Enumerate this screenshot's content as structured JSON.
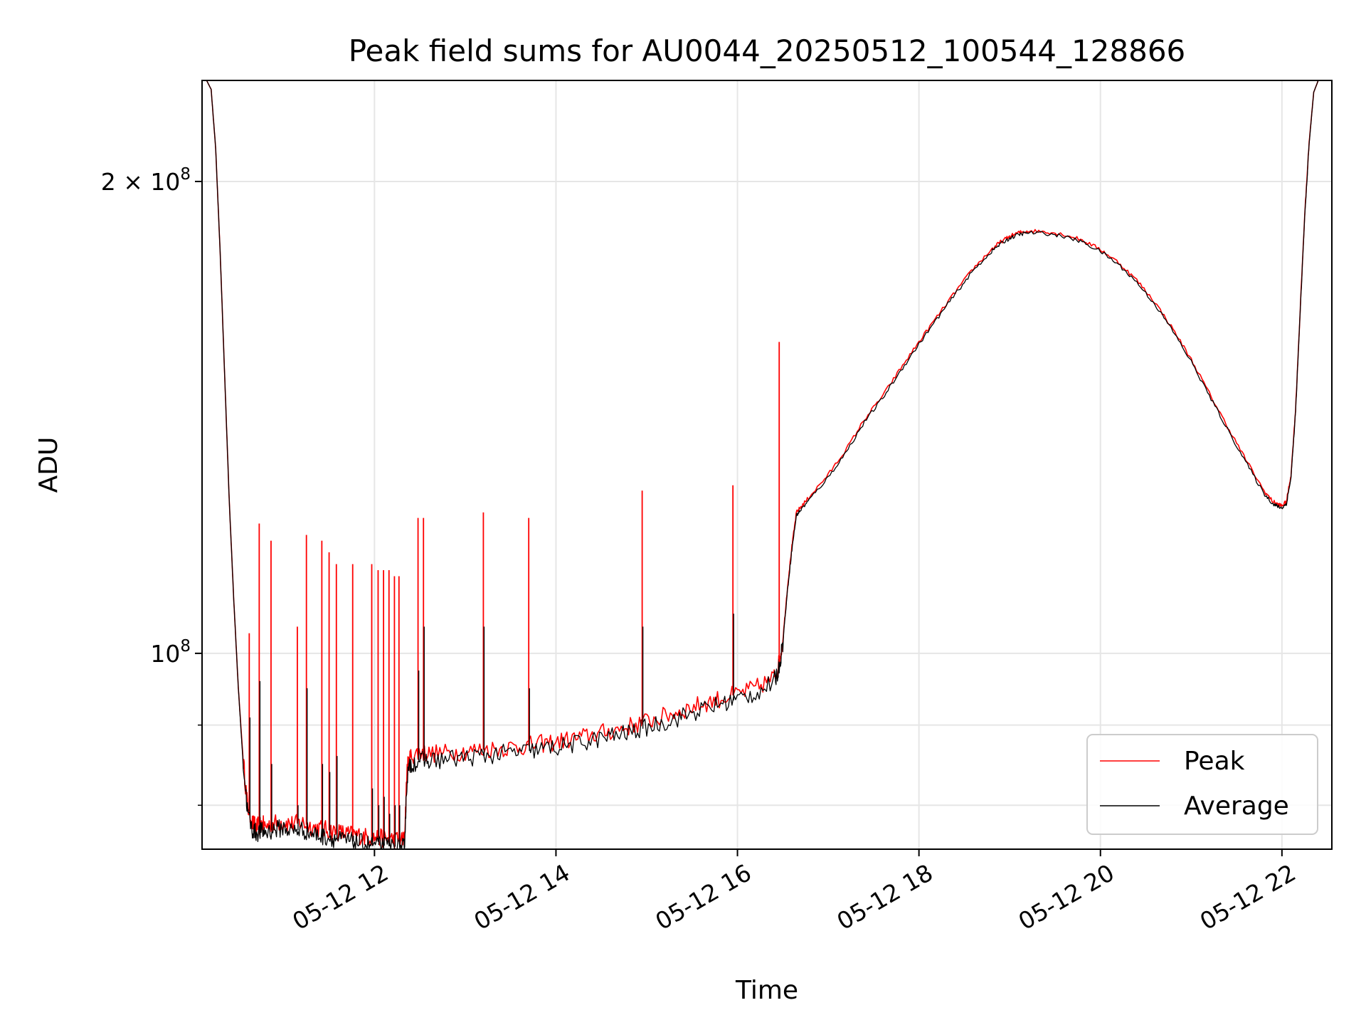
{
  "chart_data": {
    "type": "line",
    "title": "Peak field sums for AU0044_20250512_100544_128866",
    "xlabel": "Time",
    "ylabel": "ADU",
    "x_unit": "hours since 05-12 00:00",
    "xlim": [
      10.1,
      22.55
    ],
    "yscale": "log",
    "ylim": [
      75000000,
      232000000
    ],
    "grid": true,
    "legend_position": "lower-right",
    "x_ticks": [
      {
        "value": 12,
        "label": "05-12 12"
      },
      {
        "value": 14,
        "label": "05-12 14"
      },
      {
        "value": 16,
        "label": "05-12 16"
      },
      {
        "value": 18,
        "label": "05-12 18"
      },
      {
        "value": 20,
        "label": "05-12 20"
      },
      {
        "value": 22,
        "label": "05-12 22"
      }
    ],
    "y_major_ticks": [
      {
        "value": 100000000,
        "base": "10",
        "exp": "8",
        "prefix": ""
      },
      {
        "value": 200000000,
        "base": "10",
        "exp": "8",
        "prefix": "2 × "
      }
    ],
    "y_minor_ticks": [
      80000000,
      90000000
    ],
    "series": [
      {
        "name": "Peak",
        "color": "#ff0000",
        "x": [
          10.1,
          10.15,
          10.2,
          10.25,
          10.3,
          10.35,
          10.4,
          10.45,
          10.5,
          10.55,
          10.6,
          10.65,
          10.7,
          10.75,
          10.8,
          10.9,
          11.0,
          11.1,
          11.2,
          11.3,
          11.4,
          11.5,
          11.6,
          11.7,
          11.8,
          11.9,
          12.0,
          12.1,
          12.2,
          12.3,
          12.33,
          12.36,
          12.4,
          12.5,
          12.6,
          12.8,
          13.0,
          13.2,
          13.4,
          13.6,
          13.8,
          14.0,
          14.2,
          14.4,
          14.6,
          14.8,
          15.0,
          15.2,
          15.4,
          15.6,
          15.8,
          16.0,
          16.2,
          16.4,
          16.45,
          16.5,
          16.55,
          16.6,
          16.65,
          16.7,
          16.8,
          17.0,
          17.2,
          17.4,
          17.6,
          17.8,
          18.0,
          18.2,
          18.4,
          18.6,
          18.8,
          18.9,
          19.0,
          19.1,
          19.2,
          19.4,
          19.6,
          19.8,
          20.0,
          20.2,
          20.4,
          20.6,
          20.8,
          21.0,
          21.2,
          21.4,
          21.6,
          21.8,
          21.9,
          21.95,
          22.0,
          22.05,
          22.1,
          22.15,
          22.2,
          22.25,
          22.3,
          22.35,
          22.4,
          22.45,
          22.5,
          22.55
        ],
        "y": [
          232000000,
          232000000,
          229000000,
          210000000,
          180000000,
          150000000,
          125000000,
          108000000,
          95000000,
          86000000,
          80000000,
          78000000,
          77500000,
          77800000,
          77600000,
          77900000,
          78100000,
          77800000,
          78000000,
          77500000,
          77300000,
          77100000,
          76900000,
          76700000,
          76600000,
          76400000,
          76300000,
          76200000,
          76100000,
          76000000,
          76000000,
          84500000,
          86000000,
          86500000,
          86300000,
          86400000,
          86600000,
          86800000,
          87000000,
          87200000,
          87500000,
          87800000,
          88200000,
          88700000,
          89200000,
          89800000,
          90500000,
          91200000,
          92000000,
          92800000,
          93500000,
          94200000,
          95000000,
          96500000,
          98000000,
          102000000,
          110000000,
          117000000,
          123000000,
          124000000,
          126000000,
          130000000,
          135000000,
          141000000,
          146000000,
          152000000,
          158000000,
          164000000,
          170000000,
          176000000,
          181000000,
          183000000,
          184500000,
          185500000,
          186000000,
          185800000,
          185000000,
          183500000,
          181000000,
          177500000,
          173000000,
          167500000,
          161000000,
          154000000,
          146500000,
          139500000,
          133000000,
          127000000,
          125000000,
          124500000,
          124200000,
          125000000,
          130000000,
          143000000,
          165000000,
          190000000,
          212000000,
          228000000,
          232000000,
          232000000,
          232000000,
          232000000
        ]
      },
      {
        "name": "Average",
        "color": "#000000",
        "x": [
          10.1,
          10.15,
          10.2,
          10.25,
          10.3,
          10.35,
          10.4,
          10.45,
          10.5,
          10.55,
          10.6,
          10.65,
          10.7,
          10.75,
          10.8,
          10.9,
          11.0,
          11.1,
          11.2,
          11.3,
          11.4,
          11.5,
          11.6,
          11.7,
          11.8,
          11.9,
          12.0,
          12.1,
          12.2,
          12.3,
          12.33,
          12.36,
          12.4,
          12.5,
          12.6,
          12.8,
          13.0,
          13.2,
          13.4,
          13.6,
          13.8,
          14.0,
          14.2,
          14.4,
          14.6,
          14.8,
          15.0,
          15.2,
          15.4,
          15.6,
          15.8,
          16.0,
          16.2,
          16.4,
          16.45,
          16.5,
          16.55,
          16.6,
          16.65,
          16.7,
          16.8,
          17.0,
          17.2,
          17.4,
          17.6,
          17.8,
          18.0,
          18.2,
          18.4,
          18.6,
          18.8,
          18.9,
          19.0,
          19.1,
          19.2,
          19.4,
          19.6,
          19.8,
          20.0,
          20.2,
          20.4,
          20.6,
          20.8,
          21.0,
          21.2,
          21.4,
          21.6,
          21.8,
          21.9,
          21.95,
          22.0,
          22.05,
          22.1,
          22.15,
          22.2,
          22.25,
          22.3,
          22.35,
          22.4,
          22.45,
          22.5,
          22.55
        ],
        "y": [
          232000000,
          232000000,
          229000000,
          210000000,
          180000000,
          150000000,
          125000000,
          108000000,
          95000000,
          85500000,
          79500000,
          77200000,
          76800000,
          77000000,
          76900000,
          77200000,
          77400000,
          77000000,
          77200000,
          76800000,
          76500000,
          76300000,
          76100000,
          75900000,
          75800000,
          75600000,
          75500000,
          75400000,
          75300000,
          75200000,
          75200000,
          83500000,
          85000000,
          85500000,
          85400000,
          85600000,
          85800000,
          86000000,
          86300000,
          86500000,
          86800000,
          87100000,
          87500000,
          88000000,
          88500000,
          89000000,
          89700000,
          90400000,
          91200000,
          92000000,
          92800000,
          93500000,
          94300000,
          95800000,
          97500000,
          101500000,
          109500000,
          116500000,
          122500000,
          123500000,
          125500000,
          129500000,
          134500000,
          140500000,
          145500000,
          151500000,
          157500000,
          163500000,
          169500000,
          175500000,
          180500000,
          182500000,
          184000000,
          185000000,
          185500000,
          185300000,
          184500000,
          183000000,
          180500000,
          177000000,
          172500000,
          167000000,
          160500000,
          153500000,
          146000000,
          139000000,
          132500000,
          126500000,
          124600000,
          124100000,
          123800000,
          124600000,
          129500000,
          142500000,
          164500000,
          189500000,
          211500000,
          228000000,
          232000000,
          232000000,
          232000000,
          232000000
        ]
      }
    ],
    "spikes": [
      {
        "x": 10.62,
        "peak": 103000000,
        "avg": 91000000
      },
      {
        "x": 10.73,
        "peak": 121000000,
        "avg": 96000000
      },
      {
        "x": 10.86,
        "peak": 118000000,
        "avg": 85000000
      },
      {
        "x": 11.15,
        "peak": 104000000,
        "avg": 80000000
      },
      {
        "x": 11.25,
        "peak": 119000000,
        "avg": 95000000
      },
      {
        "x": 11.42,
        "peak": 118000000,
        "avg": 85000000
      },
      {
        "x": 11.5,
        "peak": 116000000,
        "avg": 84000000
      },
      {
        "x": 11.58,
        "peak": 114000000,
        "avg": 86000000
      },
      {
        "x": 11.76,
        "peak": 114000000,
        "avg": 76500000
      },
      {
        "x": 11.97,
        "peak": 114000000,
        "avg": 82000000
      },
      {
        "x": 12.04,
        "peak": 113000000,
        "avg": 80000000
      },
      {
        "x": 12.1,
        "peak": 113000000,
        "avg": 81000000
      },
      {
        "x": 12.16,
        "peak": 113000000,
        "avg": 79000000
      },
      {
        "x": 12.22,
        "peak": 112000000,
        "avg": 80000000
      },
      {
        "x": 12.27,
        "peak": 112000000,
        "avg": 80000000
      },
      {
        "x": 12.48,
        "peak": 122000000,
        "avg": 97500000
      },
      {
        "x": 12.54,
        "peak": 122000000,
        "avg": 104000000
      },
      {
        "x": 13.2,
        "peak": 123000000,
        "avg": 104000000
      },
      {
        "x": 13.7,
        "peak": 122000000,
        "avg": 95000000
      },
      {
        "x": 14.95,
        "peak": 127000000,
        "avg": 104000000
      },
      {
        "x": 15.95,
        "peak": 128000000,
        "avg": 106000000
      },
      {
        "x": 16.46,
        "peak": 158000000,
        "avg": 98000000
      }
    ],
    "legend": [
      "Peak",
      "Average"
    ]
  }
}
